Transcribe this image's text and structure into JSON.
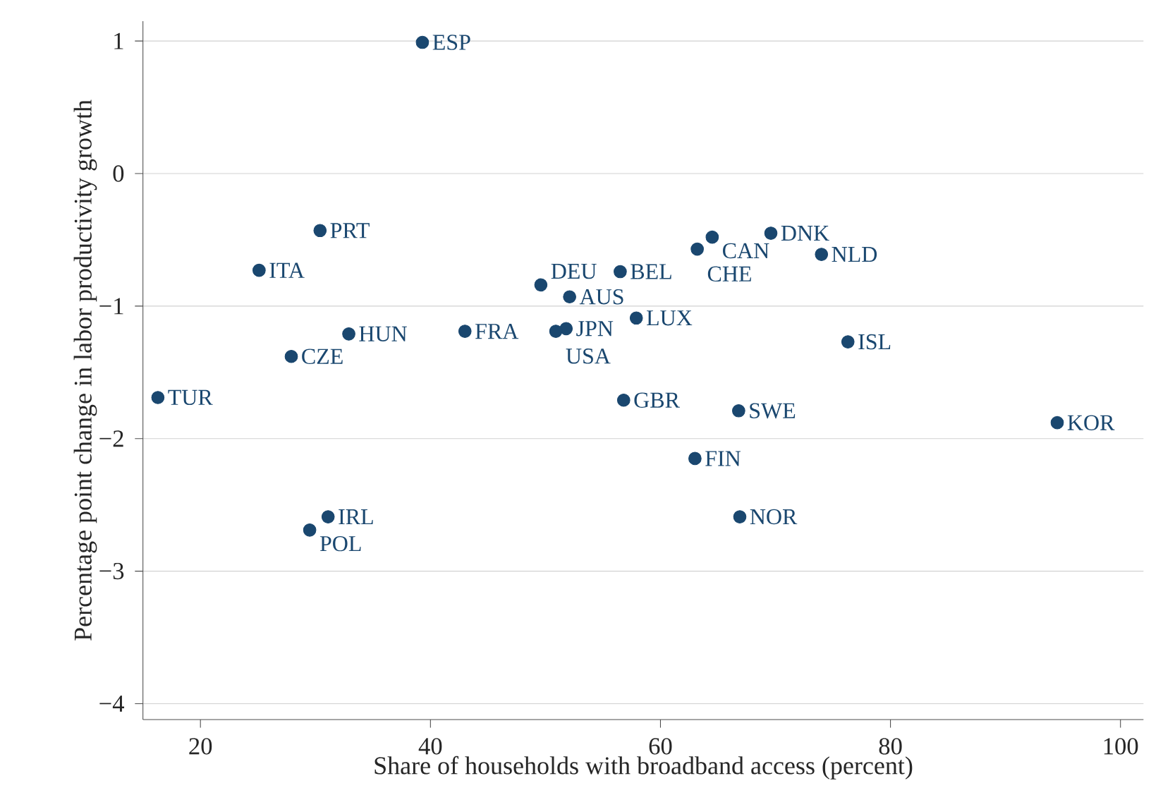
{
  "chart_data": {
    "type": "scatter",
    "xlabel": "Share of households with broadband access (percent)",
    "ylabel": "Percentage point change in labor productivity growth",
    "xlim": [
      15,
      102
    ],
    "ylim": [
      -4.12,
      1.15
    ],
    "xticks": [
      20,
      40,
      60,
      80,
      100
    ],
    "yticks": [
      {
        "value": -4,
        "label": "−4"
      },
      {
        "value": -3,
        "label": "−3"
      },
      {
        "value": -2,
        "label": "−2"
      },
      {
        "value": -1,
        "label": "−1"
      },
      0,
      1
    ],
    "grid": "y",
    "series": [
      {
        "color": "#1a476f",
        "x": [
          39.3,
          30.4,
          25.1,
          32.9,
          27.9,
          16.3,
          31.1,
          29.5,
          43.0,
          49.6,
          52.1,
          51.8,
          50.9,
          56.5,
          57.9,
          56.8,
          64.5,
          63.2,
          69.6,
          74.0,
          76.3,
          66.8,
          63.0,
          66.9,
          94.5
        ],
        "values": [
          0.99,
          -0.43,
          -0.73,
          -1.21,
          -1.38,
          -1.69,
          -2.59,
          -2.69,
          -1.19,
          -0.84,
          -0.93,
          -1.17,
          -1.19,
          -0.74,
          -1.09,
          -1.71,
          -0.48,
          -0.57,
          -0.45,
          -0.61,
          -1.27,
          -1.79,
          -2.15,
          -2.59,
          -1.88
        ]
      }
    ],
    "annotations": [
      {
        "text": "ESP",
        "x": 39.3,
        "y": 0.99
      },
      {
        "text": "PRT",
        "x": 30.4,
        "y": -0.43
      },
      {
        "text": "ITA",
        "x": 25.1,
        "y": -0.73
      },
      {
        "text": "HUN",
        "x": 32.9,
        "y": -1.21
      },
      {
        "text": "CZE",
        "x": 27.9,
        "y": -1.38
      },
      {
        "text": "TUR",
        "x": 16.3,
        "y": -1.69
      },
      {
        "text": "IRL",
        "x": 31.1,
        "y": -2.59
      },
      {
        "text": "POL",
        "x": 29.5,
        "y": -2.69
      },
      {
        "text": "FRA",
        "x": 43.0,
        "y": -1.19
      },
      {
        "text": "DEU",
        "x": 49.6,
        "y": -0.84
      },
      {
        "text": "AUS",
        "x": 52.1,
        "y": -0.93
      },
      {
        "text": "JPN",
        "x": 51.8,
        "y": -1.17
      },
      {
        "text": "USA",
        "x": 50.9,
        "y": -1.19
      },
      {
        "text": "BEL",
        "x": 56.5,
        "y": -0.74
      },
      {
        "text": "LUX",
        "x": 57.9,
        "y": -1.09
      },
      {
        "text": "GBR",
        "x": 56.8,
        "y": -1.71
      },
      {
        "text": "CAN",
        "x": 64.5,
        "y": -0.48
      },
      {
        "text": "CHE",
        "x": 63.2,
        "y": -0.57
      },
      {
        "text": "DNK",
        "x": 69.6,
        "y": -0.45
      },
      {
        "text": "NLD",
        "x": 74.0,
        "y": -0.61
      },
      {
        "text": "ISL",
        "x": 76.3,
        "y": -1.27
      },
      {
        "text": "SWE",
        "x": 66.8,
        "y": -1.79
      },
      {
        "text": "FIN",
        "x": 63.0,
        "y": -2.15
      },
      {
        "text": "NOR",
        "x": 66.9,
        "y": -2.59
      },
      {
        "text": "KOR",
        "x": 94.5,
        "y": -1.88
      }
    ]
  }
}
